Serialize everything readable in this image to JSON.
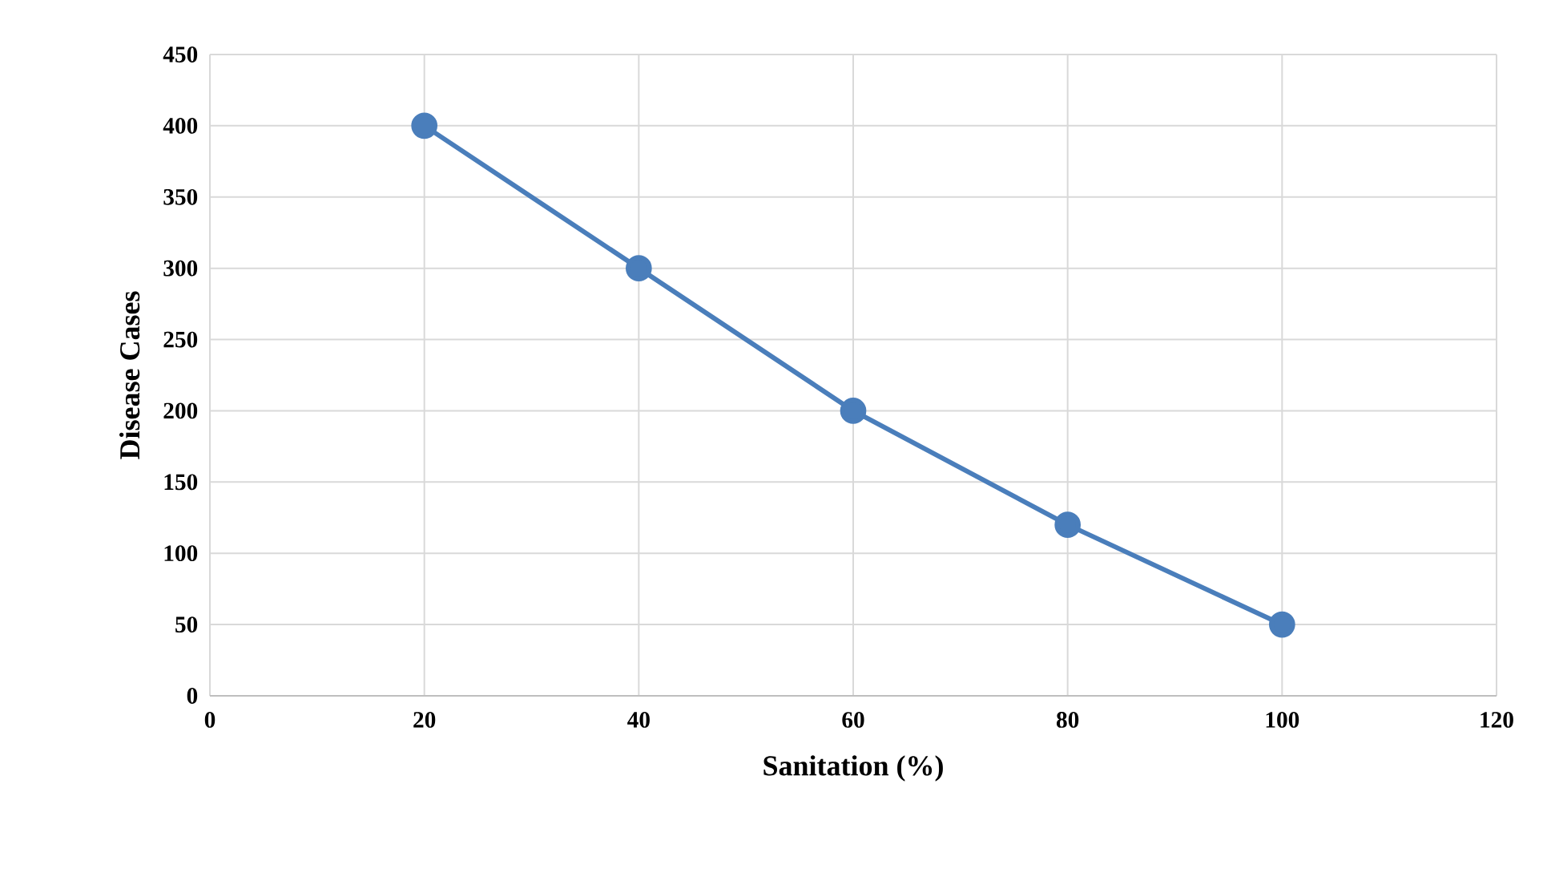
{
  "chart_data": {
    "type": "line",
    "xlabel": "Sanitation (%)",
    "ylabel": "Disease Cases",
    "x": [
      20,
      40,
      60,
      80,
      100
    ],
    "series": [
      {
        "color": "#4a7ebb",
        "values": [
          400,
          300,
          200,
          120,
          50
        ]
      }
    ],
    "xlim": [
      0,
      120
    ],
    "xticks": [
      0,
      20,
      40,
      60,
      80,
      100,
      120
    ],
    "ylim": [
      0,
      450
    ],
    "yticks": [
      0,
      50,
      100,
      150,
      200,
      250,
      300,
      350,
      400,
      450
    ],
    "grid": true,
    "marker": "circle",
    "line_style": "solid"
  }
}
